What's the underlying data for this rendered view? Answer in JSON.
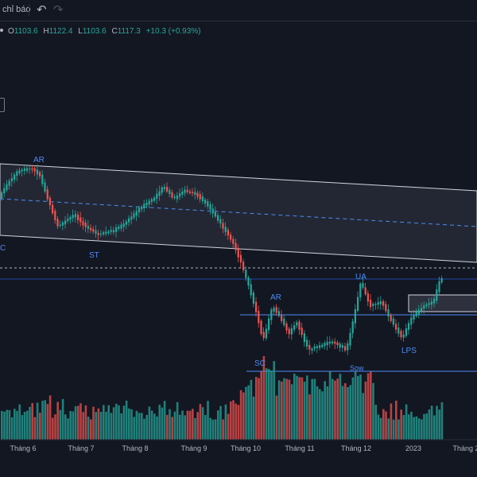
{
  "toolbar": {
    "indicators_label": "chỉ báo",
    "undo_icon": "undo-arrow-icon",
    "redo_icon": "redo-arrow-icon"
  },
  "legend": {
    "open_key": "O",
    "open": "1103.6",
    "high_key": "H",
    "high": "1122.4",
    "low_key": "L",
    "low": "1103.6",
    "close_key": "C",
    "close": "1117.3",
    "change": "+10.3 (+0.93%)"
  },
  "colors": {
    "up": "#26a69a",
    "down": "#ef5350",
    "annotation": "#4c8bf5",
    "background": "#131722"
  },
  "chart_data": {
    "type": "candlestick",
    "x_ticks": [
      "Tháng 6",
      "Tháng 7",
      "Tháng 8",
      "Tháng 9",
      "Tháng 10",
      "Tháng 11",
      "Tháng 12",
      "2023",
      "Tháng 2"
    ],
    "annotations": [
      "AR",
      "ST",
      "C",
      "AR",
      "SC",
      "UA",
      "LPS",
      "Sow"
    ],
    "last_bar": {
      "open": 1103.6,
      "high": 1122.4,
      "low": 1103.6,
      "close": 1117.3,
      "change": 10.3,
      "change_pct": 0.93
    },
    "volume_shown": true,
    "grid": false
  }
}
